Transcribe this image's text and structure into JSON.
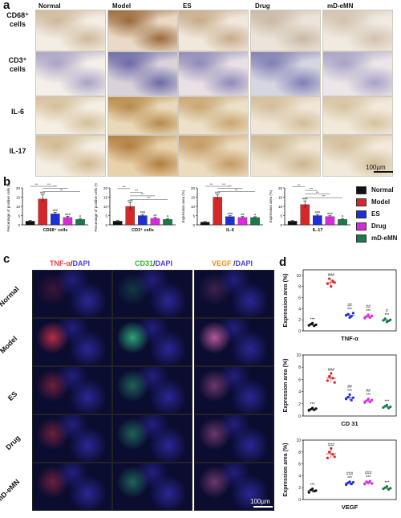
{
  "panel_a": {
    "letter": "a",
    "columns": [
      "Normal",
      "Model",
      "ES",
      "Drug",
      "mD-eMN"
    ],
    "rows": [
      {
        "label_line1": "CD68⁺",
        "label_line2": "cells"
      },
      {
        "label_line1": "CD3⁺",
        "label_line2": "cells"
      },
      {
        "label_line1": "IL-6",
        "label_line2": ""
      },
      {
        "label_line1": "IL-17",
        "label_line2": ""
      }
    ],
    "scale_bar": "100µm"
  },
  "panel_b": {
    "letter": "b",
    "legend": [
      {
        "name": "Normal",
        "color": "#111111"
      },
      {
        "name": "Model",
        "color": "#d62728"
      },
      {
        "name": "ES",
        "color": "#1f2fd6"
      },
      {
        "name": "Drug",
        "color": "#d92ad9"
      },
      {
        "name": "mD-eMN",
        "color": "#1a7a4a"
      }
    ]
  },
  "panel_c": {
    "letter": "c",
    "stains": [
      {
        "marker": "TNF-α",
        "sep": "/",
        "dapi": "DAPI",
        "color": "#ff3b3b"
      },
      {
        "marker": "CD31",
        "sep": "/",
        "dapi": "DAPI",
        "color": "#2fe02f"
      },
      {
        "marker": "VEGF",
        "sep": " /",
        "dapi": "DAPI",
        "color": "#ff9a2a"
      }
    ],
    "rows": [
      "Normal",
      "Model",
      "ES",
      "Drug",
      "mD-eMN"
    ],
    "scale_bar": "100µm"
  },
  "panel_d": {
    "letter": "d"
  },
  "chart_data": [
    {
      "type": "bar",
      "panel": "b1",
      "categories": [
        "Normal",
        "Model",
        "ES",
        "Drug",
        "mD-eMN"
      ],
      "values": [
        2,
        14,
        6,
        4,
        3
      ],
      "errors": [
        0.4,
        2.2,
        0.8,
        0.6,
        0.5
      ],
      "ylabel": "Percentage of positive cells (%)",
      "xlabel": "CD68⁺ cells",
      "yticks": [
        "0",
        "5",
        "10",
        "15",
        "20"
      ],
      "ylim": [
        0,
        20
      ],
      "annotations": [
        "",
        "###",
        "###",
        "###",
        "#"
      ],
      "sig": [
        "***",
        "***",
        "***",
        "***"
      ]
    },
    {
      "type": "bar",
      "panel": "b2",
      "categories": [
        "Normal",
        "Model",
        "ES",
        "Drug",
        "mD-eMN"
      ],
      "values": [
        2,
        10,
        5,
        3.5,
        3
      ],
      "errors": [
        0.3,
        2,
        0.6,
        0.5,
        0.4
      ],
      "ylabel": "Percentage of positive cells (%)",
      "xlabel": "CD3⁺ cells",
      "yticks": [
        "0",
        "5",
        "10",
        "15",
        "20"
      ],
      "ylim": [
        0,
        20
      ],
      "annotations": [
        "",
        "###",
        "###",
        "##",
        "#"
      ],
      "sig": [
        "***",
        "***",
        "***",
        "***"
      ]
    },
    {
      "type": "bar",
      "panel": "b3",
      "categories": [
        "Normal",
        "Model",
        "ES",
        "Drug",
        "mD-eMN"
      ],
      "values": [
        1.5,
        15,
        4.5,
        4,
        4
      ],
      "errors": [
        0.3,
        1.2,
        0.5,
        0.5,
        0.4
      ],
      "ylabel": "Expression area (%)",
      "xlabel": "IL-6",
      "yticks": [
        "0",
        "5",
        "10",
        "15",
        "20"
      ],
      "ylim": [
        0,
        20
      ],
      "annotations": [
        "",
        "###",
        "###",
        "##",
        "#"
      ],
      "sig": [
        "***",
        "***",
        "***",
        "***"
      ]
    },
    {
      "type": "bar",
      "panel": "b4",
      "categories": [
        "Normal",
        "Model",
        "ES",
        "Drug",
        "mD-eMN"
      ],
      "values": [
        2,
        11,
        5,
        4.5,
        3
      ],
      "errors": [
        0.3,
        2,
        0.6,
        0.5,
        0.4
      ],
      "ylabel": "Expression area (%)",
      "xlabel": "IL-17",
      "yticks": [
        "0",
        "5",
        "10",
        "15",
        "20"
      ],
      "ylim": [
        0,
        20
      ],
      "annotations": [
        "",
        "###",
        "###",
        "###",
        "#"
      ],
      "sig": [
        "***",
        "***",
        "***",
        "***"
      ]
    },
    {
      "type": "scatter",
      "panel": "d1",
      "categories": [
        "Normal",
        "Model",
        "ES",
        "Drug",
        "mD-eMN"
      ],
      "points": [
        [
          1.0,
          1.2,
          1.4,
          0.9,
          1.1
        ],
        [
          8.5,
          9.4,
          8.0,
          9.0,
          8.7
        ],
        [
          2.8,
          3.0,
          2.4,
          2.6,
          3.2
        ],
        [
          2.3,
          2.6,
          2.9,
          2.4,
          2.7
        ],
        [
          1.9,
          2.2,
          1.6,
          1.8,
          2.0
        ]
      ],
      "means": [
        1.1,
        8.7,
        2.8,
        2.6,
        1.9
      ],
      "ylabel": "Expression area (%)",
      "xlabel": "TNF-α",
      "yticks": [
        "0",
        "2",
        "4",
        "6",
        "8",
        "10"
      ],
      "ylim": [
        0,
        11
      ],
      "annotations": [
        "***",
        "###",
        "##\n***",
        "##\n***",
        "#\n***"
      ]
    },
    {
      "type": "scatter",
      "panel": "d2",
      "categories": [
        "Normal",
        "Model",
        "ES",
        "Drug",
        "mD-eMN"
      ],
      "points": [
        [
          0.9,
          1.1,
          1.3,
          1.0,
          1.2
        ],
        [
          5.8,
          6.5,
          7.0,
          6.2,
          5.5
        ],
        [
          2.8,
          3.1,
          3.5,
          2.6,
          3.0
        ],
        [
          2.2,
          2.5,
          2.8,
          2.3,
          2.6
        ],
        [
          1.4,
          1.6,
          1.8,
          1.3,
          1.5
        ]
      ],
      "means": [
        1.1,
        6.2,
        3.0,
        2.5,
        1.5
      ],
      "ylabel": "Expression area (%)",
      "xlabel": "CD 31",
      "yticks": [
        "0",
        "2",
        "4",
        "6",
        "8",
        "10"
      ],
      "ylim": [
        0,
        10
      ],
      "annotations": [
        "***",
        "###",
        "##\n***",
        "##\n***",
        "***"
      ]
    },
    {
      "type": "scatter",
      "panel": "d3",
      "categories": [
        "Normal",
        "Model",
        "ES",
        "Drug",
        "mD-eMN"
      ],
      "points": [
        [
          1.2,
          1.6,
          1.8,
          1.4,
          1.5
        ],
        [
          7.0,
          8.0,
          8.6,
          7.6,
          7.2
        ],
        [
          2.5,
          2.8,
          3.0,
          2.6,
          2.9
        ],
        [
          2.6,
          3.0,
          2.8,
          3.1,
          2.7
        ],
        [
          1.8,
          2.0,
          2.2,
          1.7,
          1.9
        ]
      ],
      "means": [
        1.5,
        7.7,
        2.8,
        2.8,
        1.9
      ],
      "ylabel": "Expression area (%)",
      "xlabel": "VEGF",
      "yticks": [
        "0",
        "2",
        "4",
        "6",
        "8",
        "10"
      ],
      "ylim": [
        0,
        10
      ],
      "annotations": [
        "***",
        "###",
        "###\n***",
        "###\n***",
        "***"
      ]
    }
  ]
}
